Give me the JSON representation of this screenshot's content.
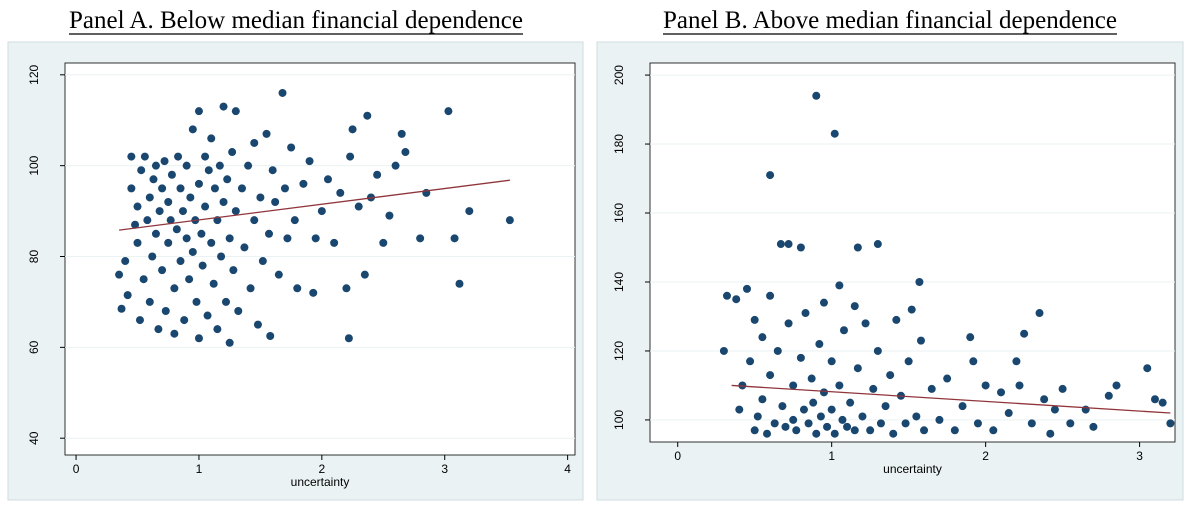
{
  "chart_data": [
    {
      "type": "scatter",
      "title": "Panel A. Below median financial dependence",
      "xlabel": "uncertainty",
      "xlim": [
        -0.09,
        4.06
      ],
      "ylim": [
        36.3,
        122.6
      ],
      "xticks": [
        0,
        1,
        2,
        3,
        4
      ],
      "yticks": [
        40,
        60,
        80,
        100,
        120
      ],
      "grid": true,
      "color": "#1a476f",
      "x": [
        0.35,
        0.37,
        0.4,
        0.42,
        0.45,
        0.45,
        0.48,
        0.5,
        0.5,
        0.52,
        0.53,
        0.55,
        0.56,
        0.58,
        0.6,
        0.6,
        0.62,
        0.63,
        0.65,
        0.65,
        0.67,
        0.68,
        0.7,
        0.7,
        0.72,
        0.73,
        0.75,
        0.75,
        0.77,
        0.78,
        0.8,
        0.8,
        0.82,
        0.83,
        0.85,
        0.85,
        0.87,
        0.88,
        0.9,
        0.9,
        0.92,
        0.93,
        0.95,
        0.95,
        0.97,
        0.98,
        1.0,
        1.0,
        1.0,
        1.02,
        1.03,
        1.05,
        1.05,
        1.07,
        1.08,
        1.1,
        1.1,
        1.12,
        1.13,
        1.15,
        1.15,
        1.17,
        1.18,
        1.2,
        1.2,
        1.22,
        1.23,
        1.25,
        1.25,
        1.27,
        1.28,
        1.3,
        1.3,
        1.32,
        1.35,
        1.37,
        1.4,
        1.42,
        1.45,
        1.45,
        1.48,
        1.5,
        1.52,
        1.55,
        1.57,
        1.58,
        1.6,
        1.62,
        1.65,
        1.68,
        1.7,
        1.72,
        1.75,
        1.78,
        1.8,
        1.85,
        1.9,
        1.93,
        1.95,
        2.0,
        2.05,
        2.1,
        2.15,
        2.2,
        2.22,
        2.23,
        2.25,
        2.3,
        2.35,
        2.37,
        2.4,
        2.45,
        2.5,
        2.55,
        2.6,
        2.65,
        2.68,
        2.8,
        2.85,
        3.03,
        3.08,
        3.12,
        3.2,
        3.53
      ],
      "values": [
        76,
        68.5,
        79,
        71.5,
        95,
        102,
        87,
        91,
        83,
        66,
        99,
        75,
        102,
        88,
        93,
        70,
        80,
        97,
        85,
        100,
        64,
        90,
        77,
        95,
        101,
        68,
        83,
        92,
        88,
        98,
        73,
        63,
        86,
        102,
        79,
        95,
        90,
        66,
        84,
        100,
        75,
        93,
        81,
        108,
        88,
        70,
        96,
        112,
        62,
        85,
        78,
        102,
        91,
        67,
        99,
        83,
        106,
        74,
        95,
        88,
        64,
        100,
        80,
        113,
        92,
        70,
        97,
        84,
        61,
        103,
        77,
        90,
        112,
        68,
        95,
        82,
        100,
        73,
        105,
        88,
        65,
        93,
        79,
        107,
        85,
        62.5,
        99,
        92,
        76,
        116,
        95,
        84,
        104,
        88,
        73,
        96,
        101,
        72,
        84,
        90,
        97,
        83,
        94,
        73,
        62,
        102,
        108,
        91,
        76,
        111,
        93,
        98,
        83,
        89,
        100,
        107,
        103,
        84,
        94,
        112,
        84,
        74,
        90,
        88
      ],
      "fit": {
        "color": "#90353b",
        "x": [
          0.35,
          3.53
        ],
        "values": [
          85.8,
          96.8
        ]
      }
    },
    {
      "type": "scatter",
      "title": "Panel B. Above median financial dependence",
      "xlabel": "uncertainty",
      "xlim": [
        -0.18,
        3.23
      ],
      "ylim": [
        93.6,
        203.5
      ],
      "xticks": [
        0,
        1,
        2,
        3
      ],
      "yticks": [
        100,
        120,
        140,
        160,
        180,
        200
      ],
      "grid": true,
      "color": "#1a476f",
      "x": [
        0.3,
        0.32,
        0.38,
        0.4,
        0.42,
        0.45,
        0.47,
        0.5,
        0.5,
        0.52,
        0.55,
        0.55,
        0.58,
        0.6,
        0.6,
        0.6,
        0.63,
        0.65,
        0.67,
        0.68,
        0.7,
        0.72,
        0.72,
        0.75,
        0.75,
        0.77,
        0.8,
        0.8,
        0.82,
        0.83,
        0.85,
        0.87,
        0.88,
        0.9,
        0.9,
        0.92,
        0.93,
        0.95,
        0.95,
        0.97,
        1.0,
        1.0,
        1.02,
        1.02,
        1.05,
        1.05,
        1.07,
        1.08,
        1.1,
        1.12,
        1.15,
        1.15,
        1.17,
        1.17,
        1.2,
        1.22,
        1.25,
        1.27,
        1.3,
        1.3,
        1.32,
        1.35,
        1.38,
        1.4,
        1.42,
        1.45,
        1.48,
        1.5,
        1.52,
        1.55,
        1.57,
        1.58,
        1.6,
        1.65,
        1.7,
        1.75,
        1.8,
        1.85,
        1.9,
        1.92,
        1.95,
        2.0,
        2.05,
        2.1,
        2.15,
        2.2,
        2.22,
        2.25,
        2.3,
        2.35,
        2.38,
        2.42,
        2.45,
        2.5,
        2.55,
        2.65,
        2.7,
        2.8,
        2.85,
        3.05,
        3.1,
        3.15,
        3.2
      ],
      "values": [
        120,
        136,
        135,
        103,
        110,
        138,
        117,
        129,
        97,
        101,
        106,
        124,
        96,
        136,
        171,
        113,
        99,
        120,
        151,
        104,
        98,
        151,
        128,
        110,
        100,
        97,
        150,
        118,
        103,
        131,
        99,
        112,
        105,
        194,
        96,
        122,
        101,
        134,
        108,
        98,
        103,
        117,
        183,
        96,
        139,
        110,
        100,
        126,
        98,
        105,
        133,
        97,
        115,
        150,
        101,
        128,
        97,
        109,
        151,
        120,
        99,
        104,
        113,
        96,
        129,
        107,
        99,
        117,
        132,
        101,
        140,
        123,
        97,
        109,
        100,
        112,
        97,
        104,
        124,
        117,
        99,
        110,
        97,
        108,
        102,
        117,
        110,
        125,
        99,
        131,
        106,
        96,
        103,
        109,
        99,
        103,
        98,
        107,
        110,
        115,
        106,
        105,
        99
      ],
      "fit": {
        "color": "#90353b",
        "x": [
          0.35,
          3.2
        ],
        "values": [
          110,
          102
        ]
      }
    }
  ]
}
